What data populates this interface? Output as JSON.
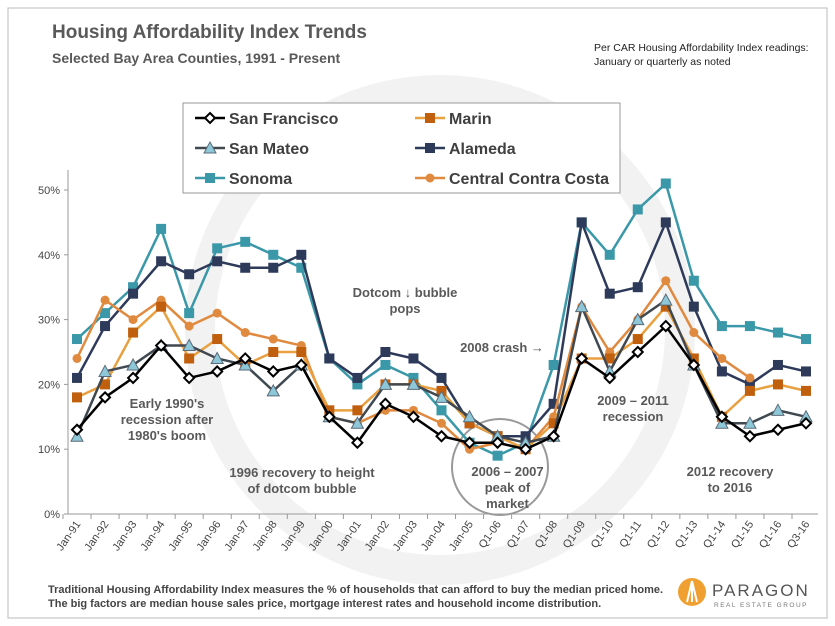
{
  "title": "Housing Affordability Index Trends",
  "subtitle": "Selected Bay Area Counties, 1991 - Present",
  "note": "Per CAR Housing Affordability Index readings: January or quarterly as noted",
  "footer": "Traditional Housing Affordability Index measures the % of households that can afford to buy the median priced home. The big factors are median house sales price, mortgage interest rates and household income distribution.",
  "logo": {
    "name": "PARAGON",
    "tagline": "REAL ESTATE GROUP",
    "color": "#f0a030"
  },
  "annotations": {
    "early90s": "Early 1990's recession after 1980's boom",
    "recovery96": "1996 recovery to height of dotcom bubble",
    "dotcom": "Dotcom ↓ bubble pops",
    "crash08": "2008 crash →",
    "peak": "2006 – 2007 peak of market",
    "recession": "2009 – 2011 recession",
    "recovery12": "2012 recovery to 2016"
  },
  "chart_data": {
    "type": "line",
    "title": "Housing Affordability Index Trends",
    "ylim": [
      0,
      50
    ],
    "yticks": [
      "0%",
      "10%",
      "20%",
      "30%",
      "40%",
      "50%"
    ],
    "grid": false,
    "legend": "top-center",
    "categories": [
      "Jan-91",
      "Jan-92",
      "Jan-93",
      "Jan-94",
      "Jan-95",
      "Jan-96",
      "Jan-97",
      "Jan-98",
      "Jan-99",
      "Jan-00",
      "Jan-01",
      "Jan-02",
      "Jan-03",
      "Jan-04",
      "Jan-05",
      "Q1-06",
      "Q1-07",
      "Q1-08",
      "Q1-09",
      "Q1-10",
      "Q1-11",
      "Q1-12",
      "Q1-13",
      "Q1-14",
      "Q1-15",
      "Q1-16",
      "Q3-16"
    ],
    "series": [
      {
        "name": "San Francisco",
        "color": "#000000",
        "marker": "diamond",
        "values": [
          13,
          18,
          21,
          26,
          21,
          22,
          24,
          22,
          23,
          15,
          11,
          17,
          15,
          12,
          11,
          11,
          10,
          12,
          24,
          21,
          25,
          29,
          23,
          15,
          12,
          13,
          14
        ]
      },
      {
        "name": "Marin",
        "color": "#e8a040",
        "marker": "square",
        "values": [
          18,
          20,
          28,
          32,
          24,
          27,
          23,
          25,
          25,
          16,
          16,
          20,
          20,
          19,
          14,
          12,
          10,
          14,
          24,
          24,
          27,
          32,
          24,
          15,
          19,
          20,
          19
        ]
      },
      {
        "name": "San Mateo",
        "color": "#404850",
        "marker": "triangle",
        "values": [
          12,
          22,
          23,
          26,
          26,
          24,
          23,
          19,
          23,
          15,
          14,
          20,
          20,
          18,
          15,
          12,
          11,
          12,
          32,
          22,
          30,
          33,
          23,
          14,
          14,
          16,
          15
        ]
      },
      {
        "name": "Alameda",
        "color": "#2e3a5a",
        "marker": "square",
        "values": [
          21,
          29,
          34,
          39,
          37,
          39,
          38,
          38,
          40,
          24,
          21,
          25,
          24,
          21,
          14,
          12,
          12,
          17,
          45,
          34,
          35,
          45,
          32,
          22,
          20,
          23,
          22
        ]
      },
      {
        "name": "Sonoma",
        "color": "#3a98a8",
        "marker": "square",
        "values": [
          27,
          31,
          35,
          44,
          31,
          41,
          42,
          40,
          38,
          24,
          20,
          23,
          21,
          16,
          11,
          9,
          11,
          23,
          45,
          40,
          47,
          51,
          36,
          29,
          29,
          28,
          27
        ]
      },
      {
        "name": "Central Contra Costa",
        "color": "#e08a40",
        "marker": "circle",
        "values": [
          24,
          33,
          30,
          33,
          29,
          31,
          28,
          27,
          26,
          15,
          14,
          16,
          16,
          14,
          10,
          11,
          10,
          15,
          32,
          25,
          30,
          36,
          28,
          24,
          21,
          null,
          null
        ]
      }
    ]
  }
}
